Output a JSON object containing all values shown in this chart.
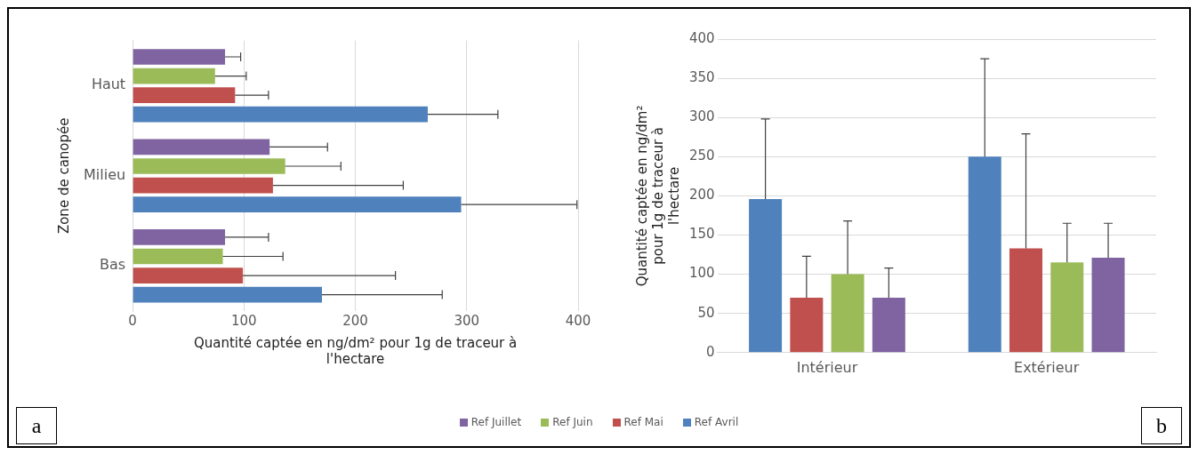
{
  "chart_data": [
    {
      "type": "bar",
      "orientation": "horizontal",
      "ylabel": "Zone de canopée",
      "xlabel": "Quantité captée en ng/dm² pour 1g de traceur à l'hectare",
      "categories": [
        "Haut",
        "Milieu",
        "Bas"
      ],
      "xlim": [
        0,
        400
      ],
      "xticks": [
        0,
        100,
        200,
        300,
        400
      ],
      "grid": "x",
      "legend": "bottom",
      "annotations": [
        "a"
      ],
      "series": [
        {
          "name": "Ref Juillet",
          "color": "#8064a2",
          "values": [
            83,
            123,
            83
          ],
          "errors": [
            [
              83,
              97
            ],
            [
              123,
              175
            ],
            [
              83,
              122
            ]
          ]
        },
        {
          "name": "Ref Juin",
          "color": "#9bbb59",
          "values": [
            74,
            137,
            81
          ],
          "errors": [
            [
              74,
              102
            ],
            [
              137,
              187
            ],
            [
              81,
              135
            ]
          ]
        },
        {
          "name": "Ref Mai",
          "color": "#c0504d",
          "values": [
            92,
            126,
            99
          ],
          "errors": [
            [
              92,
              122
            ],
            [
              126,
              243
            ],
            [
              99,
              236
            ]
          ]
        },
        {
          "name": "Ref Avril",
          "color": "#4f81bd",
          "values": [
            265,
            295,
            170
          ],
          "errors": [
            [
              265,
              328
            ],
            [
              295,
              399
            ],
            [
              170,
              278
            ]
          ]
        }
      ]
    },
    {
      "type": "bar",
      "ylabel": "Quantité captée en ng/dm² pour 1g de traceur à l'hectare",
      "categories": [
        "Intérieur",
        "Extérieur"
      ],
      "ylim": [
        0,
        400
      ],
      "yticks": [
        0,
        50,
        100,
        150,
        200,
        250,
        300,
        350,
        400
      ],
      "grid": "y",
      "annotations": [
        "b"
      ],
      "series": [
        {
          "color": "#4f81bd",
          "values": [
            196,
            250
          ],
          "errors": [
            [
              196,
              298
            ],
            [
              250,
              375
            ]
          ]
        },
        {
          "color": "#c0504d",
          "values": [
            70,
            133
          ],
          "errors": [
            [
              70,
              123
            ],
            [
              133,
              279
            ]
          ]
        },
        {
          "color": "#9bbb59",
          "values": [
            100,
            115
          ],
          "errors": [
            [
              100,
              168
            ],
            [
              115,
              165
            ]
          ]
        },
        {
          "color": "#8064a2",
          "values": [
            70,
            121
          ],
          "errors": [
            [
              70,
              108
            ],
            [
              121,
              165
            ]
          ]
        }
      ]
    }
  ]
}
